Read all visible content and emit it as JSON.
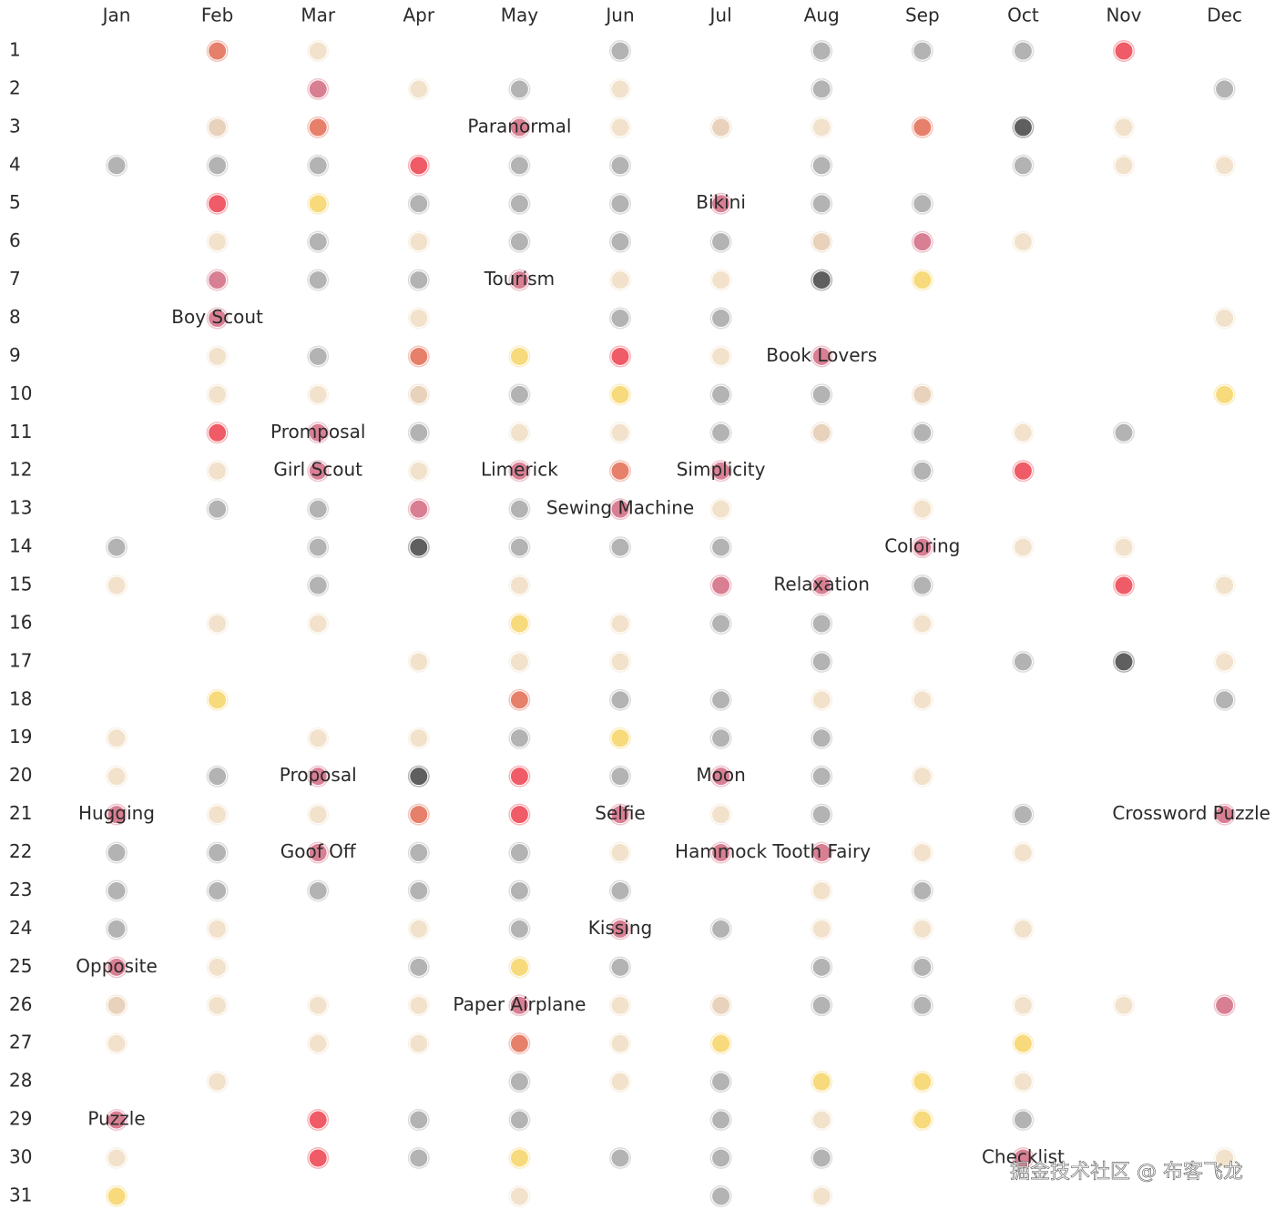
{
  "months": [
    {
      "name": "Jan",
      "dots": [
        {
          "day": 4,
          "color": "#b3b3b3"
        },
        {
          "day": 14,
          "color": "#b3b3b3"
        },
        {
          "day": 15,
          "color": "#f2e2cc"
        },
        {
          "day": 19,
          "color": "#f2e2cc"
        },
        {
          "day": 20,
          "color": "#f2e2cc"
        },
        {
          "day": 21,
          "color": "#d97f93",
          "label": "Hugging"
        },
        {
          "day": 22,
          "color": "#b3b3b3"
        },
        {
          "day": 23,
          "color": "#b3b3b3"
        },
        {
          "day": 24,
          "color": "#b3b3b3"
        },
        {
          "day": 25,
          "color": "#d97f93",
          "label": "Opposite"
        },
        {
          "day": 26,
          "color": "#e8d2bb"
        },
        {
          "day": 27,
          "color": "#f2e2cc"
        },
        {
          "day": 29,
          "color": "#d97f93",
          "label": "Puzzle"
        },
        {
          "day": 30,
          "color": "#f2e2cc"
        },
        {
          "day": 31,
          "color": "#f7da7c"
        }
      ]
    },
    {
      "name": "Feb",
      "dots": [
        {
          "day": 1,
          "color": "#e6806b"
        },
        {
          "day": 3,
          "color": "#e8d2bb"
        },
        {
          "day": 4,
          "color": "#b3b3b3"
        },
        {
          "day": 5,
          "color": "#ef5b67"
        },
        {
          "day": 6,
          "color": "#f2e2cc"
        },
        {
          "day": 7,
          "color": "#d97f93"
        },
        {
          "day": 8,
          "color": "#d97f93",
          "label": "Boy Scout"
        },
        {
          "day": 9,
          "color": "#f2e2cc"
        },
        {
          "day": 10,
          "color": "#f2e2cc"
        },
        {
          "day": 11,
          "color": "#ef5b67"
        },
        {
          "day": 12,
          "color": "#f2e2cc"
        },
        {
          "day": 13,
          "color": "#b3b3b3"
        },
        {
          "day": 16,
          "color": "#f2e2cc"
        },
        {
          "day": 18,
          "color": "#f7da7c"
        },
        {
          "day": 20,
          "color": "#b3b3b3"
        },
        {
          "day": 21,
          "color": "#f2e2cc"
        },
        {
          "day": 22,
          "color": "#b3b3b3"
        },
        {
          "day": 23,
          "color": "#b3b3b3"
        },
        {
          "day": 24,
          "color": "#f2e2cc"
        },
        {
          "day": 25,
          "color": "#f2e2cc"
        },
        {
          "day": 26,
          "color": "#f2e2cc"
        },
        {
          "day": 28,
          "color": "#f2e2cc"
        }
      ]
    },
    {
      "name": "Mar",
      "dots": [
        {
          "day": 1,
          "color": "#f2e2cc"
        },
        {
          "day": 2,
          "color": "#d97f93"
        },
        {
          "day": 3,
          "color": "#e6806b"
        },
        {
          "day": 4,
          "color": "#b3b3b3"
        },
        {
          "day": 5,
          "color": "#f7da7c"
        },
        {
          "day": 6,
          "color": "#b3b3b3"
        },
        {
          "day": 7,
          "color": "#b3b3b3"
        },
        {
          "day": 9,
          "color": "#b3b3b3"
        },
        {
          "day": 10,
          "color": "#f2e2cc"
        },
        {
          "day": 11,
          "color": "#d97f93",
          "label": "Promposal"
        },
        {
          "day": 12,
          "color": "#d97f93",
          "label": "Girl Scout"
        },
        {
          "day": 13,
          "color": "#b3b3b3"
        },
        {
          "day": 14,
          "color": "#b3b3b3"
        },
        {
          "day": 15,
          "color": "#b3b3b3"
        },
        {
          "day": 16,
          "color": "#f2e2cc"
        },
        {
          "day": 19,
          "color": "#f2e2cc"
        },
        {
          "day": 20,
          "color": "#d97f93",
          "label": "Proposal"
        },
        {
          "day": 21,
          "color": "#f2e2cc"
        },
        {
          "day": 22,
          "color": "#d97f93",
          "label": "Goof Off"
        },
        {
          "day": 23,
          "color": "#b3b3b3"
        },
        {
          "day": 26,
          "color": "#f2e2cc"
        },
        {
          "day": 27,
          "color": "#f2e2cc"
        },
        {
          "day": 29,
          "color": "#ef5b67"
        },
        {
          "day": 30,
          "color": "#ef5b67"
        }
      ]
    },
    {
      "name": "Apr",
      "dots": [
        {
          "day": 2,
          "color": "#f2e2cc"
        },
        {
          "day": 4,
          "color": "#ef5b67"
        },
        {
          "day": 5,
          "color": "#b3b3b3"
        },
        {
          "day": 6,
          "color": "#f2e2cc"
        },
        {
          "day": 7,
          "color": "#b3b3b3"
        },
        {
          "day": 8,
          "color": "#f2e2cc"
        },
        {
          "day": 9,
          "color": "#e6806b"
        },
        {
          "day": 10,
          "color": "#e8d2bb"
        },
        {
          "day": 11,
          "color": "#b3b3b3"
        },
        {
          "day": 12,
          "color": "#f2e2cc"
        },
        {
          "day": 13,
          "color": "#d97f93"
        },
        {
          "day": 14,
          "color": "#5f5f5f"
        },
        {
          "day": 17,
          "color": "#f2e2cc"
        },
        {
          "day": 19,
          "color": "#f2e2cc"
        },
        {
          "day": 20,
          "color": "#5f5f5f"
        },
        {
          "day": 21,
          "color": "#e6806b"
        },
        {
          "day": 22,
          "color": "#b3b3b3"
        },
        {
          "day": 23,
          "color": "#b3b3b3"
        },
        {
          "day": 24,
          "color": "#f2e2cc"
        },
        {
          "day": 25,
          "color": "#b3b3b3"
        },
        {
          "day": 26,
          "color": "#f2e2cc"
        },
        {
          "day": 27,
          "color": "#f2e2cc"
        },
        {
          "day": 29,
          "color": "#b3b3b3"
        },
        {
          "day": 30,
          "color": "#b3b3b3"
        }
      ]
    },
    {
      "name": "May",
      "dots": [
        {
          "day": 2,
          "color": "#b3b3b3"
        },
        {
          "day": 3,
          "color": "#d97f93",
          "label": "Paranormal"
        },
        {
          "day": 4,
          "color": "#b3b3b3"
        },
        {
          "day": 5,
          "color": "#b3b3b3"
        },
        {
          "day": 6,
          "color": "#b3b3b3"
        },
        {
          "day": 7,
          "color": "#d97f93",
          "label": "Tourism"
        },
        {
          "day": 9,
          "color": "#f7da7c"
        },
        {
          "day": 10,
          "color": "#b3b3b3"
        },
        {
          "day": 11,
          "color": "#f2e2cc"
        },
        {
          "day": 12,
          "color": "#d97f93",
          "label": "Limerick"
        },
        {
          "day": 13,
          "color": "#b3b3b3"
        },
        {
          "day": 14,
          "color": "#b3b3b3"
        },
        {
          "day": 15,
          "color": "#f2e2cc"
        },
        {
          "day": 16,
          "color": "#f7da7c"
        },
        {
          "day": 17,
          "color": "#f2e2cc"
        },
        {
          "day": 18,
          "color": "#e6806b"
        },
        {
          "day": 19,
          "color": "#b3b3b3"
        },
        {
          "day": 20,
          "color": "#ef5b67"
        },
        {
          "day": 21,
          "color": "#ef5b67"
        },
        {
          "day": 22,
          "color": "#b3b3b3"
        },
        {
          "day": 23,
          "color": "#b3b3b3"
        },
        {
          "day": 24,
          "color": "#b3b3b3"
        },
        {
          "day": 25,
          "color": "#f7da7c"
        },
        {
          "day": 26,
          "color": "#d97f93",
          "label": "Paper Airplane"
        },
        {
          "day": 27,
          "color": "#e6806b"
        },
        {
          "day": 28,
          "color": "#b3b3b3"
        },
        {
          "day": 29,
          "color": "#b3b3b3"
        },
        {
          "day": 30,
          "color": "#f7da7c"
        },
        {
          "day": 31,
          "color": "#f2e2cc"
        }
      ]
    },
    {
      "name": "Jun",
      "dots": [
        {
          "day": 1,
          "color": "#b3b3b3"
        },
        {
          "day": 2,
          "color": "#f2e2cc"
        },
        {
          "day": 3,
          "color": "#f2e2cc"
        },
        {
          "day": 4,
          "color": "#b3b3b3"
        },
        {
          "day": 5,
          "color": "#b3b3b3"
        },
        {
          "day": 6,
          "color": "#b3b3b3"
        },
        {
          "day": 7,
          "color": "#f2e2cc"
        },
        {
          "day": 8,
          "color": "#b3b3b3"
        },
        {
          "day": 9,
          "color": "#ef5b67"
        },
        {
          "day": 10,
          "color": "#f7da7c"
        },
        {
          "day": 11,
          "color": "#f2e2cc"
        },
        {
          "day": 12,
          "color": "#e6806b"
        },
        {
          "day": 13,
          "color": "#d97f93",
          "label": "Sewing Machine"
        },
        {
          "day": 14,
          "color": "#b3b3b3"
        },
        {
          "day": 16,
          "color": "#f2e2cc"
        },
        {
          "day": 17,
          "color": "#f2e2cc"
        },
        {
          "day": 18,
          "color": "#b3b3b3"
        },
        {
          "day": 19,
          "color": "#f7da7c"
        },
        {
          "day": 20,
          "color": "#b3b3b3"
        },
        {
          "day": 21,
          "color": "#d97f93",
          "label": "Selfie"
        },
        {
          "day": 22,
          "color": "#f2e2cc"
        },
        {
          "day": 23,
          "color": "#b3b3b3"
        },
        {
          "day": 24,
          "color": "#d97f93",
          "label": "Kissing"
        },
        {
          "day": 25,
          "color": "#b3b3b3"
        },
        {
          "day": 26,
          "color": "#f2e2cc"
        },
        {
          "day": 27,
          "color": "#f2e2cc"
        },
        {
          "day": 28,
          "color": "#f2e2cc"
        },
        {
          "day": 30,
          "color": "#b3b3b3"
        }
      ]
    },
    {
      "name": "Jul",
      "dots": [
        {
          "day": 3,
          "color": "#e8d2bb"
        },
        {
          "day": 5,
          "color": "#d97f93",
          "label": "Bikini"
        },
        {
          "day": 6,
          "color": "#b3b3b3"
        },
        {
          "day": 7,
          "color": "#f2e2cc"
        },
        {
          "day": 8,
          "color": "#b3b3b3"
        },
        {
          "day": 9,
          "color": "#f2e2cc"
        },
        {
          "day": 10,
          "color": "#b3b3b3"
        },
        {
          "day": 11,
          "color": "#b3b3b3"
        },
        {
          "day": 12,
          "color": "#d97f93",
          "label": "Simplicity"
        },
        {
          "day": 13,
          "color": "#f2e2cc"
        },
        {
          "day": 14,
          "color": "#b3b3b3"
        },
        {
          "day": 15,
          "color": "#d97f93"
        },
        {
          "day": 16,
          "color": "#b3b3b3"
        },
        {
          "day": 18,
          "color": "#b3b3b3"
        },
        {
          "day": 19,
          "color": "#b3b3b3"
        },
        {
          "day": 20,
          "color": "#d97f93",
          "label": "Moon"
        },
        {
          "day": 21,
          "color": "#f2e2cc"
        },
        {
          "day": 22,
          "color": "#d97f93",
          "label": "Hammock"
        },
        {
          "day": 24,
          "color": "#b3b3b3"
        },
        {
          "day": 26,
          "color": "#e8d2bb"
        },
        {
          "day": 27,
          "color": "#f7da7c"
        },
        {
          "day": 28,
          "color": "#b3b3b3"
        },
        {
          "day": 29,
          "color": "#b3b3b3"
        },
        {
          "day": 30,
          "color": "#b3b3b3"
        },
        {
          "day": 31,
          "color": "#b3b3b3"
        }
      ]
    },
    {
      "name": "Aug",
      "dots": [
        {
          "day": 1,
          "color": "#b3b3b3"
        },
        {
          "day": 2,
          "color": "#b3b3b3"
        },
        {
          "day": 3,
          "color": "#f2e2cc"
        },
        {
          "day": 4,
          "color": "#b3b3b3"
        },
        {
          "day": 5,
          "color": "#b3b3b3"
        },
        {
          "day": 6,
          "color": "#e8d2bb"
        },
        {
          "day": 7,
          "color": "#5f5f5f"
        },
        {
          "day": 9,
          "color": "#d97f93",
          "label": "Book Lovers"
        },
        {
          "day": 10,
          "color": "#b3b3b3"
        },
        {
          "day": 11,
          "color": "#e8d2bb"
        },
        {
          "day": 15,
          "color": "#d97f93",
          "label": "Relaxation"
        },
        {
          "day": 16,
          "color": "#b3b3b3"
        },
        {
          "day": 17,
          "color": "#b3b3b3"
        },
        {
          "day": 18,
          "color": "#f2e2cc"
        },
        {
          "day": 19,
          "color": "#b3b3b3"
        },
        {
          "day": 20,
          "color": "#b3b3b3"
        },
        {
          "day": 21,
          "color": "#b3b3b3"
        },
        {
          "day": 22,
          "color": "#d97f93",
          "label": "Tooth Fairy"
        },
        {
          "day": 23,
          "color": "#f2e2cc"
        },
        {
          "day": 24,
          "color": "#f2e2cc"
        },
        {
          "day": 25,
          "color": "#b3b3b3"
        },
        {
          "day": 26,
          "color": "#b3b3b3"
        },
        {
          "day": 28,
          "color": "#f7da7c"
        },
        {
          "day": 29,
          "color": "#f2e2cc"
        },
        {
          "day": 30,
          "color": "#b3b3b3"
        },
        {
          "day": 31,
          "color": "#f2e2cc"
        }
      ]
    },
    {
      "name": "Sep",
      "dots": [
        {
          "day": 1,
          "color": "#b3b3b3"
        },
        {
          "day": 3,
          "color": "#e6806b"
        },
        {
          "day": 5,
          "color": "#b3b3b3"
        },
        {
          "day": 6,
          "color": "#d97f93"
        },
        {
          "day": 7,
          "color": "#f7da7c"
        },
        {
          "day": 10,
          "color": "#e8d2bb"
        },
        {
          "day": 11,
          "color": "#b3b3b3"
        },
        {
          "day": 12,
          "color": "#b3b3b3"
        },
        {
          "day": 13,
          "color": "#f2e2cc"
        },
        {
          "day": 14,
          "color": "#d97f93",
          "label": "Coloring"
        },
        {
          "day": 15,
          "color": "#b3b3b3"
        },
        {
          "day": 16,
          "color": "#f2e2cc"
        },
        {
          "day": 18,
          "color": "#f2e2cc"
        },
        {
          "day": 20,
          "color": "#f2e2cc"
        },
        {
          "day": 22,
          "color": "#f2e2cc"
        },
        {
          "day": 23,
          "color": "#b3b3b3"
        },
        {
          "day": 24,
          "color": "#f2e2cc"
        },
        {
          "day": 25,
          "color": "#b3b3b3"
        },
        {
          "day": 26,
          "color": "#b3b3b3"
        },
        {
          "day": 28,
          "color": "#f7da7c"
        },
        {
          "day": 29,
          "color": "#f7da7c"
        }
      ]
    },
    {
      "name": "Oct",
      "dots": [
        {
          "day": 1,
          "color": "#b3b3b3"
        },
        {
          "day": 3,
          "color": "#5f5f5f"
        },
        {
          "day": 4,
          "color": "#b3b3b3"
        },
        {
          "day": 6,
          "color": "#f2e2cc"
        },
        {
          "day": 11,
          "color": "#f2e2cc"
        },
        {
          "day": 12,
          "color": "#ef5b67"
        },
        {
          "day": 14,
          "color": "#f2e2cc"
        },
        {
          "day": 17,
          "color": "#b3b3b3"
        },
        {
          "day": 21,
          "color": "#b3b3b3"
        },
        {
          "day": 22,
          "color": "#f2e2cc"
        },
        {
          "day": 24,
          "color": "#f2e2cc"
        },
        {
          "day": 26,
          "color": "#f2e2cc"
        },
        {
          "day": 27,
          "color": "#f7da7c"
        },
        {
          "day": 28,
          "color": "#f2e2cc"
        },
        {
          "day": 29,
          "color": "#b3b3b3"
        },
        {
          "day": 30,
          "color": "#d97f93",
          "label": "Checklist"
        }
      ]
    },
    {
      "name": "Nov",
      "dots": [
        {
          "day": 1,
          "color": "#ef5b67"
        },
        {
          "day": 3,
          "color": "#f2e2cc"
        },
        {
          "day": 4,
          "color": "#f2e2cc"
        },
        {
          "day": 11,
          "color": "#b3b3b3"
        },
        {
          "day": 14,
          "color": "#f2e2cc"
        },
        {
          "day": 15,
          "color": "#ef5b67"
        },
        {
          "day": 17,
          "color": "#5f5f5f"
        },
        {
          "day": 26,
          "color": "#f2e2cc"
        }
      ]
    },
    {
      "name": "Dec",
      "dots": [
        {
          "day": 2,
          "color": "#b3b3b3"
        },
        {
          "day": 4,
          "color": "#f2e2cc"
        },
        {
          "day": 8,
          "color": "#f2e2cc"
        },
        {
          "day": 10,
          "color": "#f7da7c"
        },
        {
          "day": 15,
          "color": "#f2e2cc"
        },
        {
          "day": 17,
          "color": "#f2e2cc"
        },
        {
          "day": 18,
          "color": "#b3b3b3"
        },
        {
          "day": 21,
          "color": "#d97f93",
          "label": "Crossword Puzzle"
        },
        {
          "day": 26,
          "color": "#d97f93"
        },
        {
          "day": 30,
          "color": "#f2e2cc"
        }
      ]
    }
  ],
  "days": [
    1,
    2,
    3,
    4,
    5,
    6,
    7,
    8,
    9,
    10,
    11,
    12,
    13,
    14,
    15,
    16,
    17,
    18,
    19,
    20,
    21,
    22,
    23,
    24,
    25,
    26,
    27,
    28,
    29,
    30,
    31
  ],
  "watermark": "掘金技术社区 @ 布客飞龙"
}
